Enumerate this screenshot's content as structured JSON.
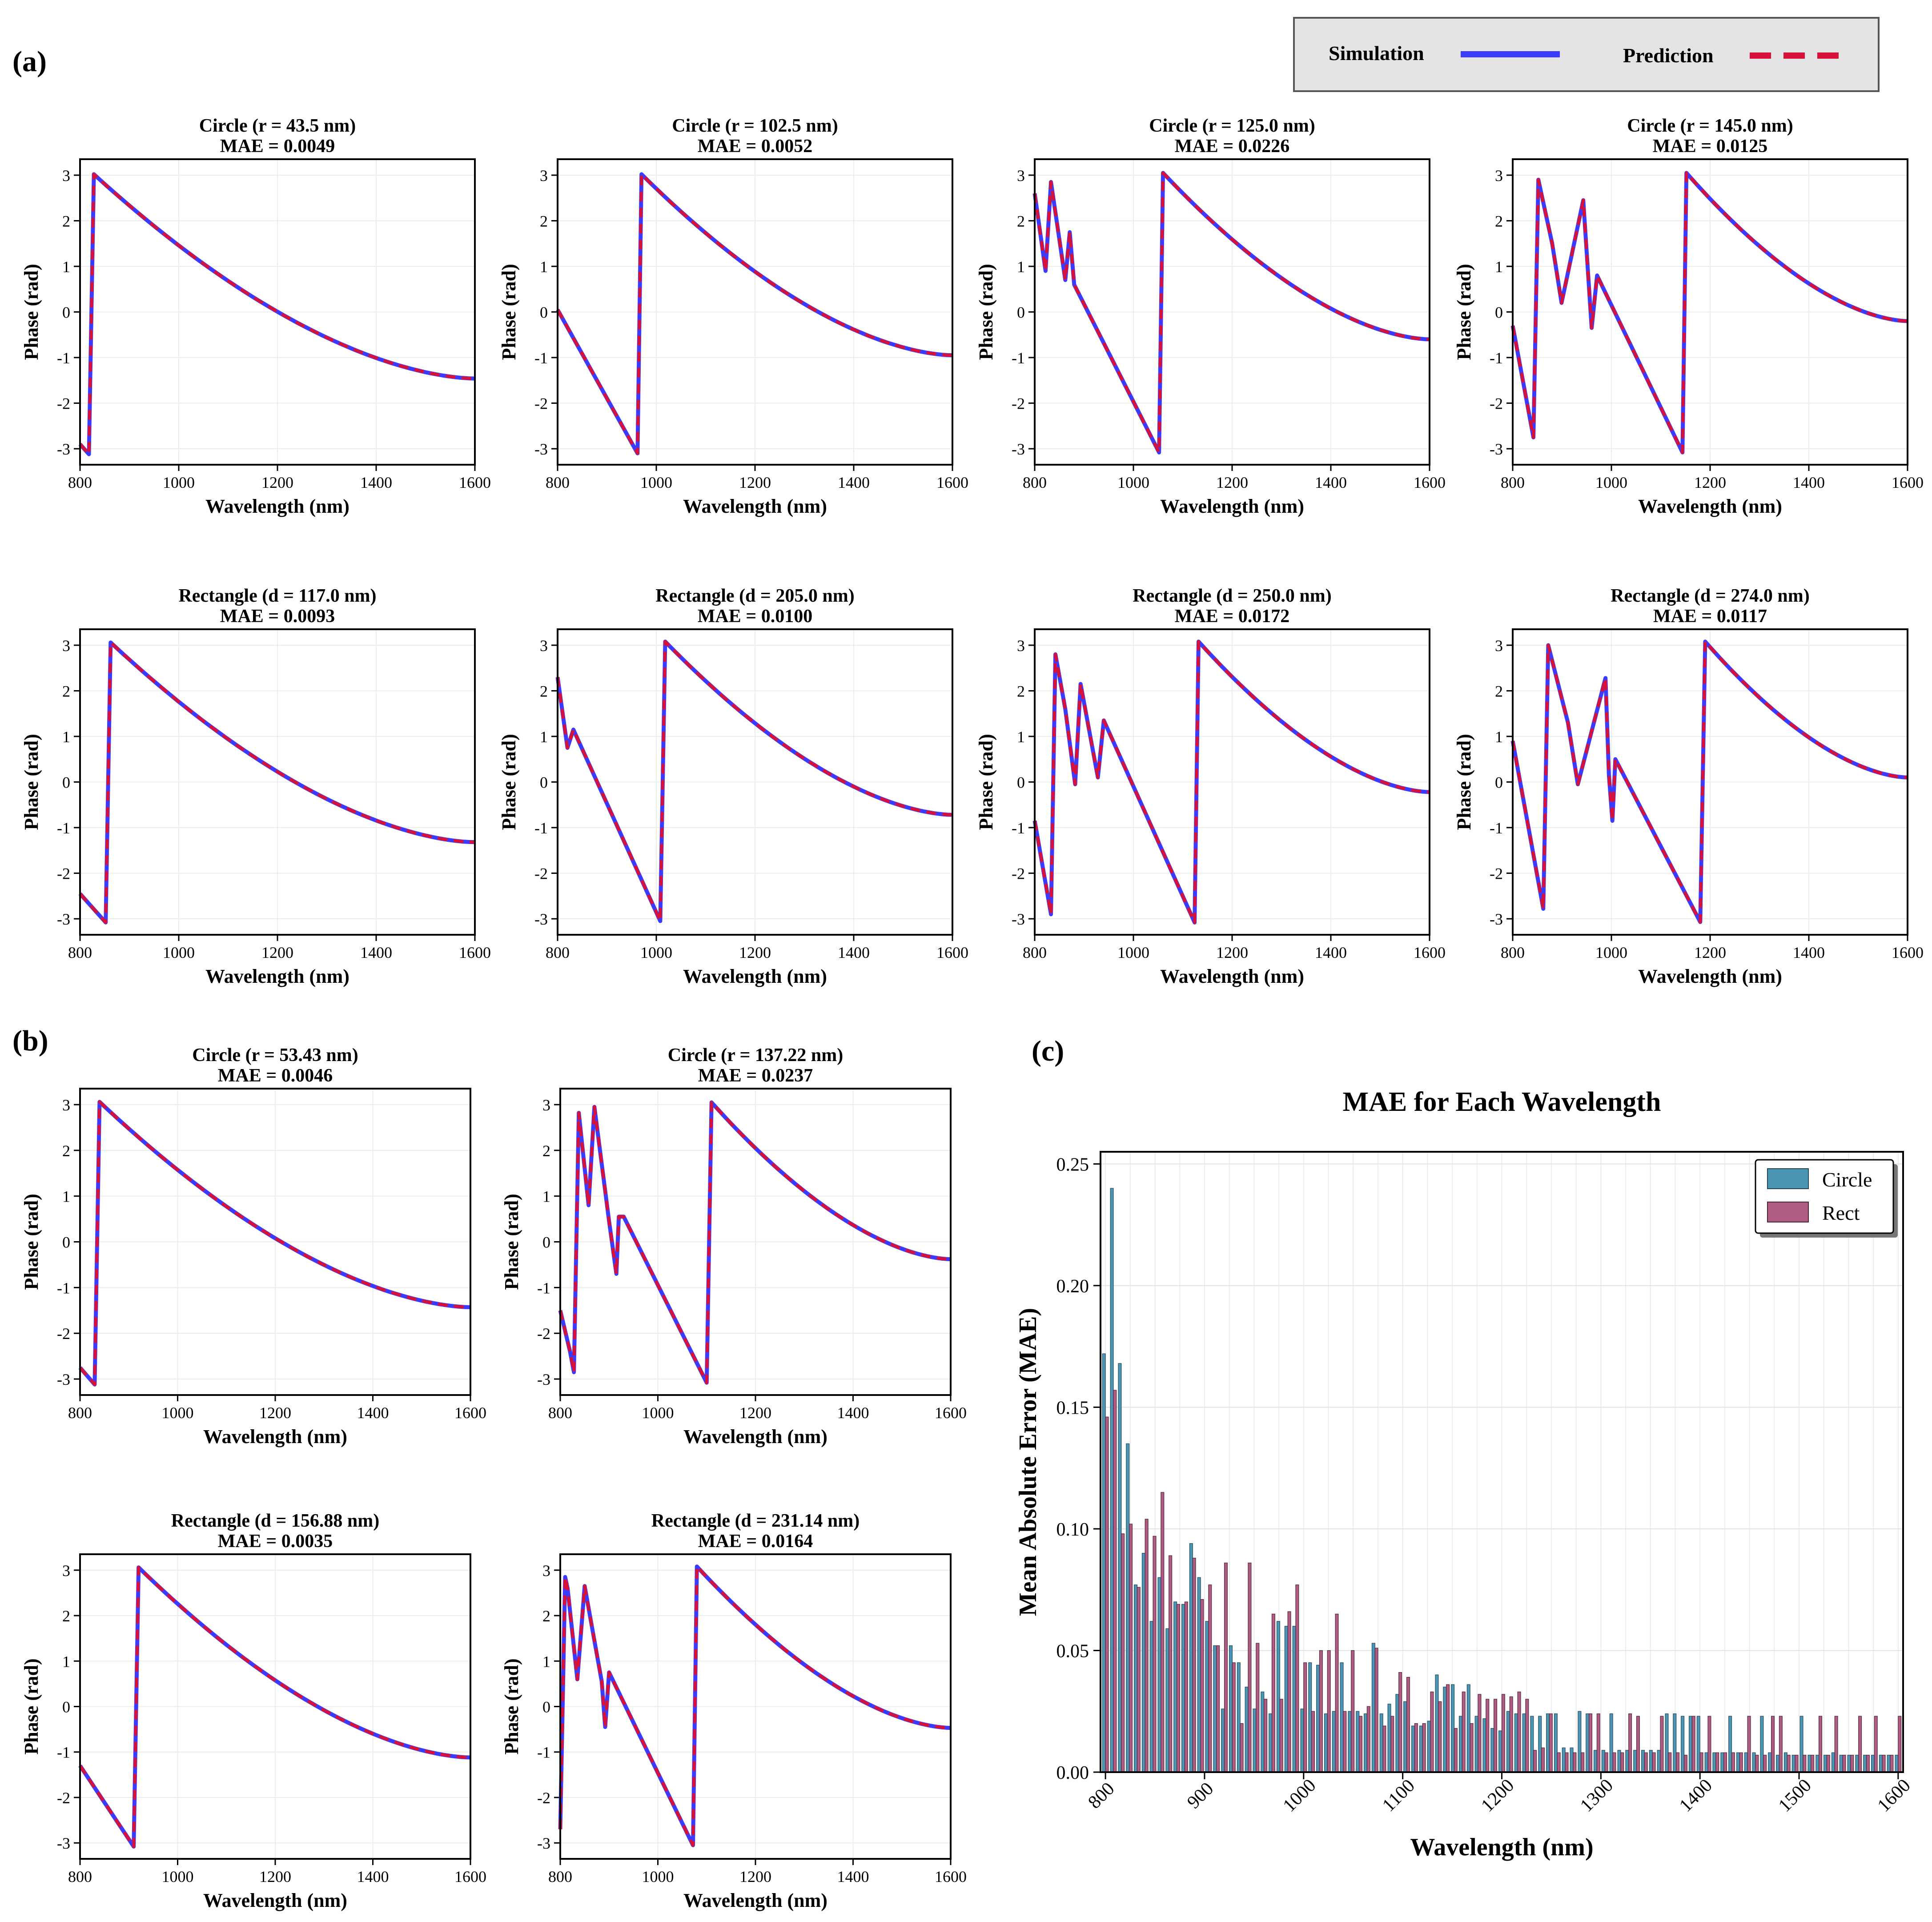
{
  "panel_labels": {
    "a": "(a)",
    "b": "(b)",
    "c": "(c)"
  },
  "legend": {
    "simulation_label": "Simulation",
    "prediction_label": "Prediction",
    "simulation_color": "#3b3bff",
    "prediction_color": "#d6123b"
  },
  "chart_data": [
    {
      "type": "line",
      "title": "Circle (r = 43.5 nm)",
      "subtitle": "MAE = 0.0049",
      "xlabel": "Wavelength (nm)",
      "ylabel": "Phase (rad)",
      "xlim": [
        800,
        1600
      ],
      "ylim": [
        -3.35,
        3.35
      ],
      "x": [
        800,
        818,
        828,
        1600
      ],
      "y": [
        -2.9,
        -3.12,
        3.02,
        -1.46
      ],
      "decay_start": 828
    },
    {
      "type": "line",
      "title": "Circle (r = 102.5 nm)",
      "subtitle": "MAE = 0.0052",
      "xlabel": "Wavelength (nm)",
      "ylabel": "Phase (rad)",
      "xlim": [
        800,
        1600
      ],
      "ylim": [
        -3.35,
        3.35
      ],
      "x": [
        800,
        962,
        970,
        1600
      ],
      "y": [
        0.05,
        -3.1,
        3.02,
        -0.95
      ],
      "decay_start": 970
    },
    {
      "type": "line",
      "title": "Circle (r = 125.0 nm)",
      "subtitle": "MAE = 0.0226",
      "xlabel": "Wavelength (nm)",
      "ylabel": "Phase (rad)",
      "xlim": [
        800,
        1600
      ],
      "ylim": [
        -3.35,
        3.35
      ],
      "x": [
        800,
        822,
        833,
        862,
        871,
        880,
        1052,
        1060,
        1600
      ],
      "y": [
        2.6,
        0.9,
        2.85,
        0.7,
        1.75,
        0.6,
        -3.08,
        3.05,
        -0.6
      ],
      "decay_start": 1060
    },
    {
      "type": "line",
      "title": "Circle (r = 145.0 nm)",
      "subtitle": "MAE = 0.0125",
      "xlabel": "Wavelength (nm)",
      "ylabel": "Phase (rad)",
      "xlim": [
        800,
        1600
      ],
      "ylim": [
        -3.35,
        3.35
      ],
      "x": [
        800,
        842,
        852,
        880,
        899,
        943,
        960,
        971,
        1144,
        1152,
        1600
      ],
      "y": [
        -0.3,
        -2.75,
        2.9,
        1.5,
        0.2,
        2.45,
        -0.35,
        0.8,
        -3.08,
        3.05,
        -0.2
      ],
      "decay_start": 1152
    },
    {
      "type": "line",
      "title": "Rectangle (d = 117.0 nm)",
      "subtitle": "MAE = 0.0093",
      "xlabel": "Wavelength (nm)",
      "ylabel": "Phase (rad)",
      "xlim": [
        800,
        1600
      ],
      "ylim": [
        -3.35,
        3.35
      ],
      "x": [
        800,
        852,
        862,
        1600
      ],
      "y": [
        -2.45,
        -3.08,
        3.06,
        -1.32
      ],
      "decay_start": 862
    },
    {
      "type": "line",
      "title": "Rectangle (d = 205.0 nm)",
      "subtitle": "MAE = 0.0100",
      "xlabel": "Wavelength (nm)",
      "ylabel": "Phase (rad)",
      "xlim": [
        800,
        1600
      ],
      "ylim": [
        -3.35,
        3.35
      ],
      "x": [
        800,
        820,
        832,
        1008,
        1018,
        1600
      ],
      "y": [
        2.3,
        0.75,
        1.15,
        -3.05,
        3.08,
        -0.72
      ],
      "decay_start": 1018
    },
    {
      "type": "line",
      "title": "Rectangle (d = 250.0 nm)",
      "subtitle": "MAE = 0.0172",
      "xlabel": "Wavelength (nm)",
      "ylabel": "Phase (rad)",
      "xlim": [
        800,
        1600
      ],
      "ylim": [
        -3.35,
        3.35
      ],
      "x": [
        800,
        833,
        842,
        862,
        882,
        893,
        928,
        940,
        1124,
        1132,
        1600
      ],
      "y": [
        -0.85,
        -2.9,
        2.8,
        1.6,
        -0.05,
        2.15,
        0.1,
        1.35,
        -3.08,
        3.08,
        -0.22
      ],
      "decay_start": 1132
    },
    {
      "type": "line",
      "title": "Rectangle (d = 274.0 nm)",
      "subtitle": "MAE = 0.0117",
      "xlabel": "Wavelength (nm)",
      "ylabel": "Phase (rad)",
      "xlim": [
        800,
        1600
      ],
      "ylim": [
        -3.35,
        3.35
      ],
      "x": [
        800,
        862,
        872,
        912,
        932,
        988,
        995,
        1002,
        1008,
        1180,
        1190,
        1600
      ],
      "y": [
        0.9,
        -2.78,
        3.0,
        1.3,
        -0.05,
        2.28,
        0.15,
        -0.85,
        0.5,
        -3.07,
        3.08,
        0.1
      ],
      "decay_start": 1190
    },
    {
      "type": "line",
      "title": "Circle (r = 53.43 nm)",
      "subtitle": "MAE = 0.0046",
      "xlabel": "Wavelength (nm)",
      "ylabel": "Phase (rad)",
      "xlim": [
        800,
        1600
      ],
      "ylim": [
        -3.35,
        3.35
      ],
      "x": [
        800,
        830,
        840,
        1600
      ],
      "y": [
        -2.75,
        -3.12,
        3.06,
        -1.43
      ],
      "decay_start": 840
    },
    {
      "type": "line",
      "title": "Circle (r = 137.22 nm)",
      "subtitle": "MAE = 0.0237",
      "xlabel": "Wavelength (nm)",
      "ylabel": "Phase (rad)",
      "xlim": [
        800,
        1600
      ],
      "ylim": [
        -3.35,
        3.35
      ],
      "x": [
        800,
        820,
        828,
        838,
        858,
        870,
        900,
        915,
        920,
        930,
        1100,
        1110,
        1600
      ],
      "y": [
        -1.5,
        -2.4,
        -2.85,
        2.82,
        0.8,
        2.95,
        0.45,
        -0.7,
        0.55,
        0.55,
        -3.08,
        3.05,
        -0.38
      ],
      "decay_start": 1110
    },
    {
      "type": "line",
      "title": "Rectangle (d = 156.88 nm)",
      "subtitle": "MAE = 0.0035",
      "xlabel": "Wavelength (nm)",
      "ylabel": "Phase (rad)",
      "xlim": [
        800,
        1600
      ],
      "ylim": [
        -3.35,
        3.35
      ],
      "x": [
        800,
        910,
        920,
        1600
      ],
      "y": [
        -1.3,
        -3.08,
        3.06,
        -1.12
      ],
      "decay_start": 920
    },
    {
      "type": "line",
      "title": "Rectangle (d = 231.14 nm)",
      "subtitle": "MAE = 0.0164",
      "xlabel": "Wavelength (nm)",
      "ylabel": "Phase (rad)",
      "xlim": [
        800,
        1600
      ],
      "ylim": [
        -3.35,
        3.35
      ],
      "x": [
        800,
        810,
        815,
        835,
        850,
        870,
        885,
        892,
        900,
        1072,
        1080,
        1600
      ],
      "y": [
        -2.7,
        2.85,
        2.6,
        0.6,
        2.65,
        1.45,
        0.55,
        -0.45,
        0.75,
        -3.05,
        3.08,
        -0.47
      ],
      "decay_start": 1080
    },
    {
      "type": "bar",
      "title": "MAE for Each Wavelength",
      "xlabel": "Wavelength (nm)",
      "ylabel": "Mean Absolute Error (MAE)",
      "xlim": [
        795,
        1605
      ],
      "ylim": [
        0,
        0.255
      ],
      "series": [
        {
          "name": "Circle",
          "color": "#4a96b4"
        },
        {
          "name": "Rect",
          "color": "#b05c82"
        }
      ],
      "x": [
        800,
        808,
        816,
        824,
        832,
        840,
        848,
        856,
        864,
        872,
        880,
        888,
        896,
        904,
        912,
        920,
        928,
        936,
        944,
        952,
        960,
        968,
        976,
        984,
        992,
        1000,
        1008,
        1016,
        1024,
        1032,
        1040,
        1048,
        1056,
        1064,
        1072,
        1080,
        1088,
        1096,
        1104,
        1112,
        1120,
        1128,
        1136,
        1144,
        1152,
        1160,
        1168,
        1176,
        1184,
        1192,
        1200,
        1208,
        1216,
        1224,
        1232,
        1240,
        1248,
        1256,
        1264,
        1272,
        1280,
        1288,
        1296,
        1304,
        1312,
        1320,
        1328,
        1336,
        1344,
        1352,
        1360,
        1368,
        1376,
        1384,
        1392,
        1400,
        1408,
        1416,
        1424,
        1432,
        1440,
        1448,
        1456,
        1464,
        1472,
        1480,
        1488,
        1496,
        1504,
        1512,
        1520,
        1528,
        1536,
        1544,
        1552,
        1560,
        1568,
        1576,
        1584,
        1592,
        1600
      ],
      "circle": [
        0.172,
        0.24,
        0.168,
        0.135,
        0.077,
        0.09,
        0.062,
        0.08,
        0.059,
        0.07,
        0.069,
        0.094,
        0.08,
        0.062,
        0.052,
        0.026,
        0.052,
        0.045,
        0.035,
        0.026,
        0.033,
        0.024,
        0.062,
        0.06,
        0.06,
        0.026,
        0.045,
        0.044,
        0.024,
        0.025,
        0.045,
        0.025,
        0.025,
        0.024,
        0.053,
        0.024,
        0.028,
        0.032,
        0.029,
        0.019,
        0.019,
        0.021,
        0.04,
        0.035,
        0.036,
        0.023,
        0.036,
        0.023,
        0.022,
        0.018,
        0.017,
        0.025,
        0.024,
        0.024,
        0.023,
        0.023,
        0.024,
        0.024,
        0.01,
        0.01,
        0.025,
        0.024,
        0.009,
        0.009,
        0.024,
        0.009,
        0.009,
        0.009,
        0.009,
        0.009,
        0.009,
        0.024,
        0.024,
        0.023,
        0.023,
        0.023,
        0.008,
        0.008,
        0.008,
        0.023,
        0.008,
        0.008,
        0.008,
        0.023,
        0.008,
        0.007,
        0.008,
        0.007,
        0.023,
        0.007,
        0.007,
        0.007,
        0.008,
        0.007,
        0.007,
        0.007,
        0.007,
        0.007,
        0.007,
        0.007,
        0.007
      ],
      "rect": [
        0.146,
        0.157,
        0.098,
        0.102,
        0.076,
        0.104,
        0.097,
        0.115,
        0.089,
        0.069,
        0.07,
        0.088,
        0.071,
        0.077,
        0.052,
        0.086,
        0.045,
        0.02,
        0.086,
        0.053,
        0.03,
        0.065,
        0.03,
        0.066,
        0.077,
        0.045,
        0.025,
        0.05,
        0.05,
        0.065,
        0.025,
        0.05,
        0.023,
        0.027,
        0.051,
        0.019,
        0.023,
        0.041,
        0.039,
        0.02,
        0.02,
        0.033,
        0.029,
        0.036,
        0.018,
        0.033,
        0.02,
        0.032,
        0.03,
        0.03,
        0.032,
        0.031,
        0.033,
        0.03,
        0.009,
        0.01,
        0.024,
        0.008,
        0.008,
        0.008,
        0.008,
        0.024,
        0.024,
        0.008,
        0.008,
        0.008,
        0.024,
        0.023,
        0.008,
        0.008,
        0.023,
        0.008,
        0.008,
        0.007,
        0.023,
        0.008,
        0.023,
        0.008,
        0.008,
        0.008,
        0.008,
        0.023,
        0.007,
        0.007,
        0.023,
        0.023,
        0.007,
        0.007,
        0.007,
        0.007,
        0.023,
        0.007,
        0.023,
        0.007,
        0.007,
        0.023,
        0.007,
        0.023,
        0.007,
        0.007,
        0.023
      ]
    }
  ]
}
